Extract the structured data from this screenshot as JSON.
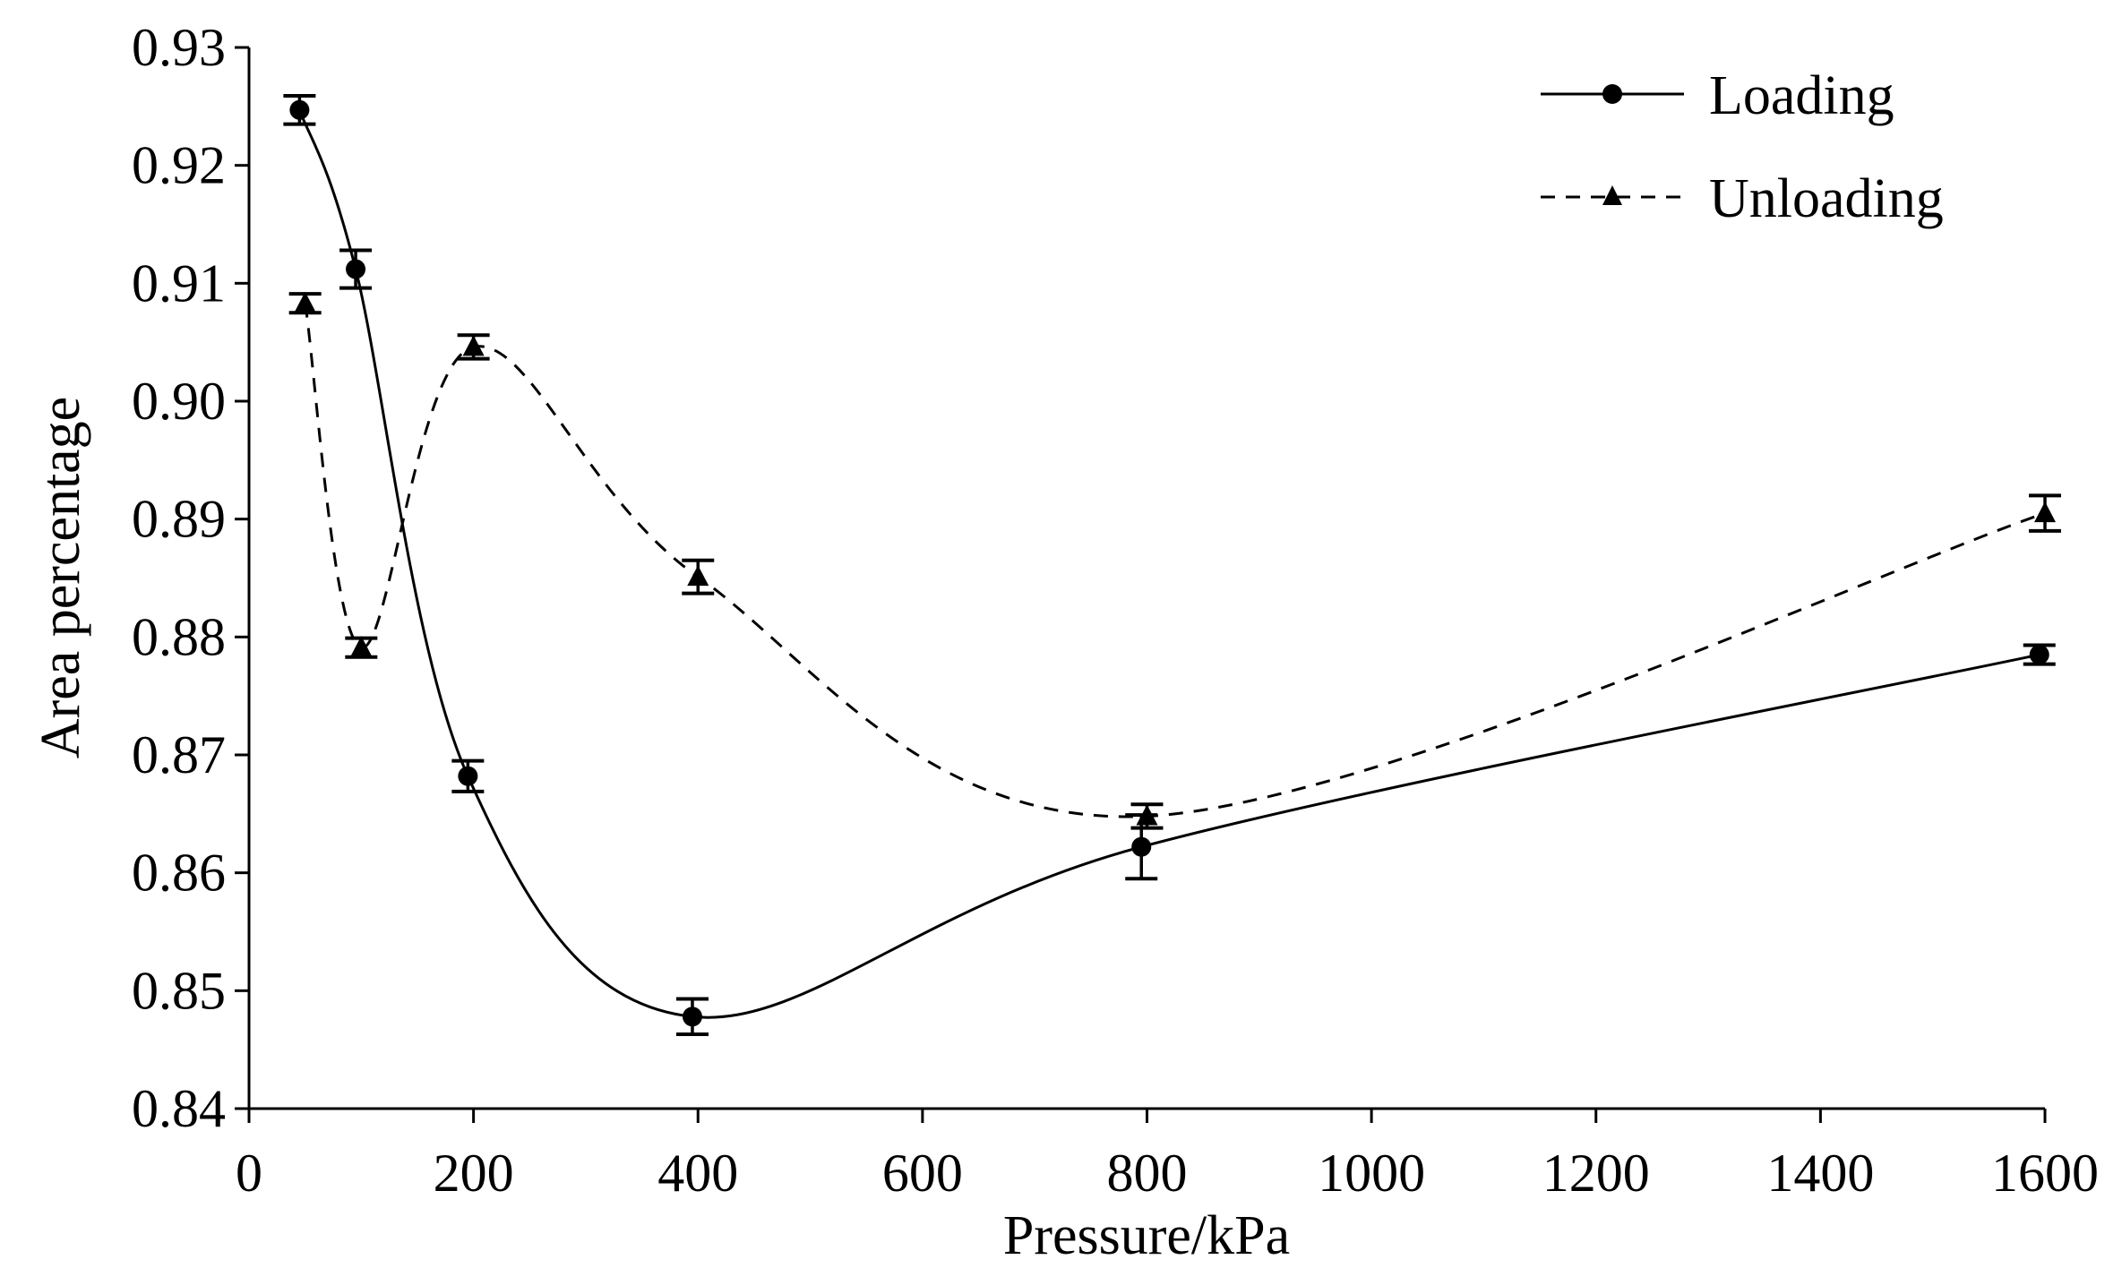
{
  "chart_data": {
    "type": "line",
    "title": "",
    "xlabel": "Pressure/kPa",
    "ylabel": "Area percentage",
    "xlim": [
      0,
      1600
    ],
    "ylim": [
      0.84,
      0.93
    ],
    "x_ticks": [
      "0",
      "200",
      "400",
      "600",
      "800",
      "1000",
      "1200",
      "1400",
      "1600"
    ],
    "y_ticks": [
      "0.84",
      "0.85",
      "0.86",
      "0.87",
      "0.88",
      "0.89",
      "0.90",
      "0.91",
      "0.92",
      "0.93"
    ],
    "grid": false,
    "legend_position": "top-right",
    "series": [
      {
        "name": "Loading",
        "line_style": "solid",
        "marker": "circle",
        "color": "#000000",
        "x": [
          45,
          95,
          195,
          395,
          795,
          1595
        ],
        "y": [
          0.9247,
          0.9112,
          0.8682,
          0.8478,
          0.8622,
          0.8785
        ],
        "err": [
          0.0012,
          0.0016,
          0.0013,
          0.0015,
          0.0027,
          0.0008
        ]
      },
      {
        "name": "Unloading",
        "line_style": "dashed",
        "marker": "triangle",
        "color": "#000000",
        "x": [
          50,
          100,
          200,
          400,
          800,
          1600
        ],
        "y": [
          0.9083,
          0.8791,
          0.9046,
          0.8851,
          0.8648,
          0.8905
        ],
        "err": [
          0.0008,
          0.0008,
          0.001,
          0.0014,
          0.001,
          0.0015
        ]
      }
    ]
  }
}
